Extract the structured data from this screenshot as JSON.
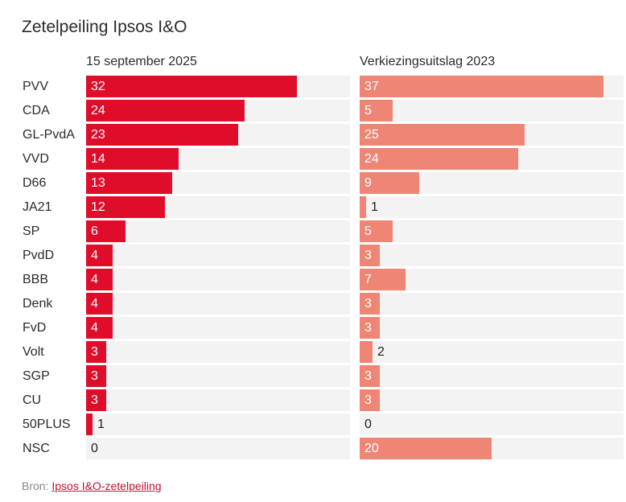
{
  "chart_data": {
    "type": "bar",
    "title": "Zetelpeiling Ipsos I&O",
    "categories": [
      "PVV",
      "CDA",
      "GL-PvdA",
      "VVD",
      "D66",
      "JA21",
      "SP",
      "PvdD",
      "BBB",
      "Denk",
      "FvD",
      "Volt",
      "SGP",
      "CU",
      "50PLUS",
      "NSC"
    ],
    "series": [
      {
        "name": "15 september 2025",
        "color": "#e00d2a",
        "values": [
          32,
          24,
          23,
          14,
          13,
          12,
          6,
          4,
          4,
          4,
          4,
          3,
          3,
          3,
          1,
          0
        ]
      },
      {
        "name": "Verkiezingsuitslag 2023",
        "color": "#ef8575",
        "values": [
          37,
          5,
          25,
          24,
          9,
          1,
          5,
          3,
          7,
          3,
          3,
          2,
          3,
          3,
          0,
          20
        ]
      }
    ],
    "xlim": [
      0,
      40
    ],
    "xlabel": "",
    "ylabel": "",
    "grid": false,
    "legend": "column headers"
  },
  "source": {
    "prefix": "Bron: ",
    "link_text": "Ipsos I&O-zetelpeiling"
  }
}
